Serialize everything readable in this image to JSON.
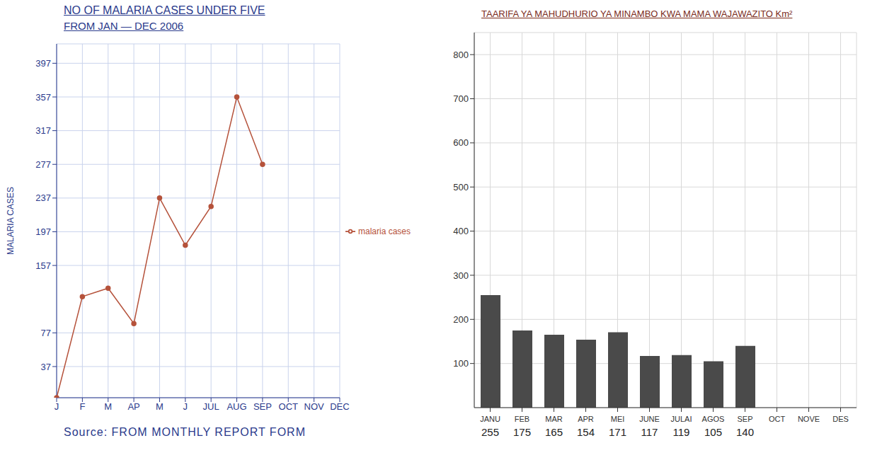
{
  "chart_data": [
    {
      "type": "line",
      "title": "NO OF MALARIA CASES UNDER FIVE",
      "subtitle": "FROM JAN — DEC 2006",
      "y_label": "MALARIA CASES",
      "annotations": [
        "Source: FROM MONTHLY REPORT FORM"
      ],
      "categories": [
        "J",
        "F",
        "M",
        "AP",
        "M",
        "J",
        "JUL",
        "AUG",
        "SEP",
        "OCT",
        "NOV",
        "DEC"
      ],
      "series": [
        {
          "name": "malaria cases",
          "color": "#b5523b",
          "values": [
            0,
            120,
            130,
            88,
            237,
            181,
            227,
            357,
            277,
            null,
            null,
            null
          ]
        }
      ],
      "ylim": [
        0,
        420
      ],
      "yticks": [
        37,
        77,
        157,
        197,
        237,
        277,
        317,
        357,
        397
      ],
      "grid": true,
      "legend": "right",
      "marker": "circle"
    },
    {
      "type": "bar",
      "title": "TAARIFA YA MAHUDHURIO YA MINAMBO KWA MAMA WAJAWAZITO Km²",
      "categories": [
        "JANU",
        "FEB",
        "MAR",
        "APR",
        "MEI",
        "JUNE",
        "JULAI",
        "AGOS",
        "SEP",
        "OCT",
        "NOVE",
        "DES"
      ],
      "values": [
        255,
        175,
        165,
        154,
        171,
        117,
        119,
        105,
        140,
        null,
        null,
        null
      ],
      "color": "#4a4a4a",
      "ylim": [
        0,
        850
      ],
      "yticks": [
        100,
        200,
        300,
        400,
        500,
        600,
        700,
        800
      ],
      "grid": true,
      "data_labels": true
    }
  ]
}
